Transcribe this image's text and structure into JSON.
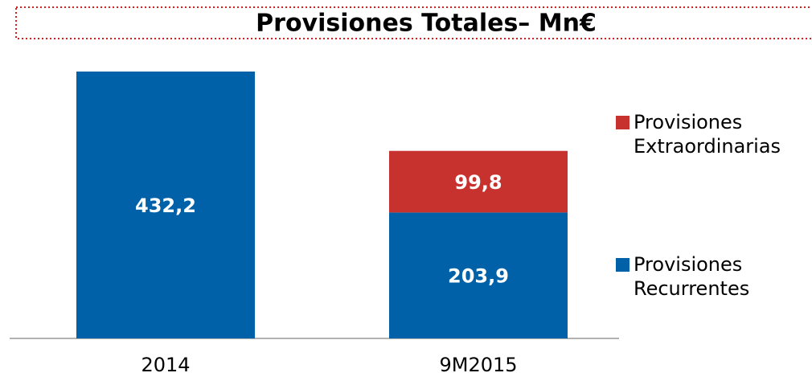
{
  "chart_data": {
    "type": "stacked_bar",
    "title": "Provisiones Totales– Mn€",
    "categories": [
      "2014",
      "9M2015"
    ],
    "series": [
      {
        "name": "Provisiones Recurrentes",
        "color": "#0060a8",
        "values": [
          432.2,
          203.9
        ],
        "value_labels": [
          "432,2",
          "203,9"
        ]
      },
      {
        "name": "Provisiones Extraordinarias",
        "color": "#c8322e",
        "values": [
          null,
          99.8
        ],
        "value_labels": [
          null,
          "99,8"
        ]
      }
    ]
  }
}
